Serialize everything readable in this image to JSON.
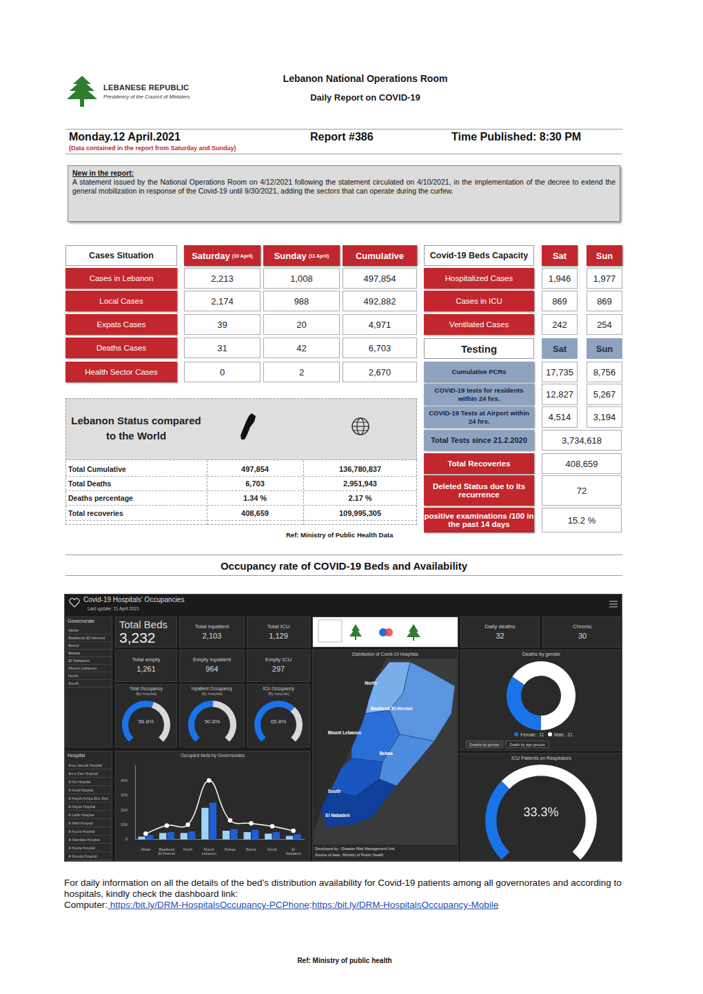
{
  "header": {
    "org_line1": "LEBANESE REPUBLIC",
    "org_line2": "Presidency of the Council of Ministers",
    "title": "Lebanon National Operations Room",
    "subtitle": "Daily Report on COVID-19"
  },
  "report_info": {
    "date": "Monday.12 April.2021",
    "report": "Report #386",
    "time": "Time Published: 8:30 PM",
    "note": "(Data contained in the report from Saturday and Sunday)"
  },
  "new_in_report": {
    "heading": "New in the report:",
    "text": "A statement issued by the National Operations Room on 4/12/2021 following the statement circulated on 4/10/2021, in the implementation of the decree to extend the general mobilization in response of the Covid-19 until 9/30/2021, adding the sectors that can operate during the curfew."
  },
  "cases_table": {
    "header": [
      "Cases Situation",
      {
        "text": "Saturday",
        "note": "(10 April)"
      },
      {
        "text": "Sunday",
        "note": "(11 April)"
      },
      "Cumulative"
    ],
    "rows": [
      [
        "Cases in Lebanon",
        "2,213",
        "1,008",
        "497,854"
      ],
      [
        "Local Cases",
        "2,174",
        "988",
        "492,882"
      ],
      [
        "Expats Cases",
        "39",
        "20",
        "4,971"
      ],
      [
        "Deaths Cases",
        "31",
        "42",
        "6,703"
      ],
      [
        "Health Sector Cases",
        "0",
        "2",
        "2,670"
      ]
    ]
  },
  "beds_table": {
    "header": [
      "Covid-19 Beds Capacity",
      "Sat",
      "Sun"
    ],
    "rows": [
      [
        "Hospitalized Cases",
        "1,946",
        "1,977"
      ],
      [
        "Cases in ICU",
        "869",
        "869"
      ],
      [
        "Ventilated Cases",
        "242",
        "254"
      ]
    ]
  },
  "testing_table": {
    "header": [
      "Testing",
      "Sat",
      "Sun"
    ],
    "rows": [
      [
        "Cumulative PCRs",
        "17,735",
        "8,756"
      ],
      [
        "COVID-19 tests for residents within 24 hrs.",
        "12,827",
        "5,267"
      ],
      [
        "COVID-19 Tests at Airport within 24 hrs.",
        "4,514",
        "3,194"
      ],
      [
        "Total Tests since 21.2.2020",
        "3,734,618"
      ]
    ]
  },
  "summary_table": {
    "rows": [
      [
        "Total Recoveries",
        "408,659"
      ],
      [
        "Deleted Status due to its recurrence",
        "72"
      ],
      [
        "positive examinations /100 in the past 14 days",
        "15.2 %"
      ]
    ]
  },
  "status_table": {
    "title": "Lebanon Status compared to the World",
    "rows": [
      [
        "Total Cumulative",
        "497,854",
        "136,780,837"
      ],
      [
        "Total Deaths",
        "6,703",
        "2,951,943"
      ],
      [
        "Deaths percentage",
        "1.34 %",
        "2.17 %"
      ],
      [
        "Total recoveries",
        "408,659",
        "109,995,305"
      ]
    ]
  },
  "ref_data": "Ref: Ministry of Public Health Data",
  "section_title": "Occupancy rate of COVID-19 Beds and Availability",
  "dashboard": {
    "title": "Covid-19 Hospitals' Occupancies",
    "last_update": "Last update: 11 April 2021",
    "governorate_header": "Governorate",
    "governorates": [
      "Akkar",
      "Baalbeck El-Hermel",
      "Beirut",
      "Bekaa",
      "El Nabatieh",
      "Mount Lebanon",
      "North",
      "South"
    ],
    "tiles": [
      {
        "label": "Total Beds",
        "value": "3,232"
      },
      {
        "label": "Total inpatient",
        "value": "2,103"
      },
      {
        "label": "Total ICU",
        "value": "1,129"
      },
      {
        "label": "Total empty",
        "value": "1,261"
      },
      {
        "label": "Empty inpatient",
        "value": "964"
      },
      {
        "label": "Empty ICU",
        "value": "297"
      }
    ],
    "gauges": [
      {
        "title": "Total Occupancy",
        "subtitle": "(By hospital)",
        "value": 56.8,
        "value_label": "56.8%",
        "max": 100
      },
      {
        "title": "Inpatient Occupancy",
        "subtitle": "(By hospital)",
        "value": 50.8,
        "value_label": "50.8%",
        "max": 100
      },
      {
        "title": "ICU Occupancy",
        "subtitle": "(By hospital)",
        "value": 65.8,
        "value_label": "65.8%",
        "max": 100
      }
    ],
    "map": {
      "title": "Distribution of Covid-19 Hospitals",
      "labels": [
        "North",
        "Baalbeck El-Hermel",
        "Mount Lebanon",
        "Bekaa",
        "South",
        "El Nabatieh"
      ],
      "credits": [
        "Developed by : Disaster Risk Management Unit",
        "Source of data : Ministry of Public Health"
      ]
    },
    "daily_deaths": {
      "label": "Daily deaths",
      "value": "32"
    },
    "chronic": {
      "label": "Chronic",
      "value": "30"
    },
    "deaths_by_gender": {
      "title": "Deaths by gender",
      "values": [
        11,
        21
      ],
      "colors": [
        "#1a73e8",
        "#ffffff"
      ],
      "legend_labels": [
        "Female : 11",
        "Male : 21"
      ],
      "buttons": [
        "Deaths by gender",
        "Death by age groups"
      ]
    },
    "respirators": {
      "title": "ICU Patients on Respirators",
      "value": 33.3,
      "value_label": "33.3%",
      "max": 100
    },
    "hospital_header": "Hospital",
    "hospitals": [
      "Abou Jaoude Hospital",
      "Ain w Zein Hospital",
      "Al Ain Hospital",
      "Al Amal Hospital",
      "Al Hayek Achiya Bint Jbeil",
      "Al Hayek Hospital",
      "Al Labib Hospital",
      "Al Mitel Hospital",
      "Al Koura Hospital",
      "Al Mamlaka Hospital",
      "Al Monla Hospital",
      "Al Mounla Hospital"
    ]
  },
  "chart_data": {
    "type": "bar",
    "title": "Occupied beds by Governorates",
    "categories": [
      "Akkar",
      "Baalbeck El-Hermel",
      "North",
      "Mount Lebanon",
      "Bekaa",
      "Beirut",
      "South",
      "El Nabatieh"
    ],
    "series": [
      {
        "type": "bar",
        "color": "#9fd3f7",
        "values": [
          20,
          45,
          45,
          215,
          60,
          50,
          40,
          25
        ]
      },
      {
        "type": "bar",
        "color": "#1f5fd6",
        "values": [
          30,
          50,
          55,
          250,
          70,
          65,
          50,
          35
        ]
      },
      {
        "type": "line",
        "color": "#ffffff",
        "marker": "circle",
        "values": [
          40,
          95,
          100,
          400,
          130,
          110,
          90,
          60
        ]
      }
    ],
    "ylim": [
      0,
      500
    ],
    "yticks": [
      0,
      100,
      200,
      300,
      400
    ],
    "grid": false
  },
  "footer": {
    "text": "For daily information on all the details of the bed’s distribution availability for Covid-19 patients among all governorates and according to hospitals, kindly check the dashboard link:",
    "segments": [
      {
        "text": "Computer:",
        "link": false
      },
      {
        "text": " https:/bit.ly/DRM-HospitalsOccupancy-PCPhone",
        "link": true
      },
      {
        "text": ":",
        "link": false
      },
      {
        "text": "https:/bit.ly/DRM-HospitalsOccupancy-Mobile",
        "link": true
      }
    ],
    "ref": "Ref: Ministry of public health"
  }
}
